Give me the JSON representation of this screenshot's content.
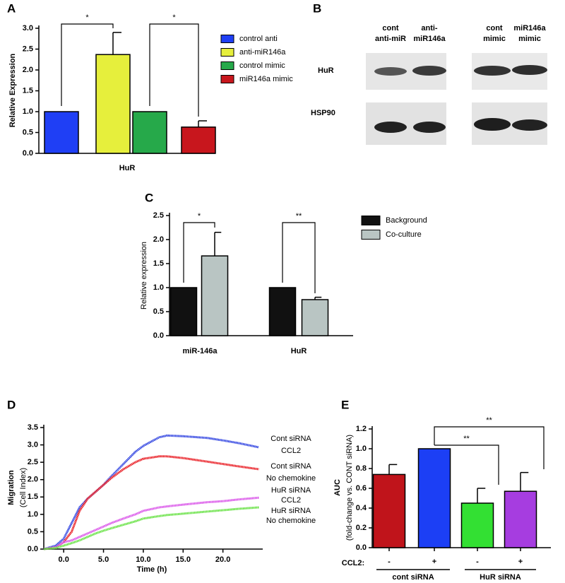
{
  "chart_data": [
    {
      "type": "bar",
      "panel_label": "A",
      "ylabel": "Relative Expression",
      "categories": [
        "HuR"
      ],
      "series": [
        {
          "name": "control anti",
          "color": "#1f3ff5",
          "values": [
            1.0
          ],
          "errors": [
            null
          ]
        },
        {
          "name": "anti-miR146a",
          "color": "#e6ef3c",
          "values": [
            2.37
          ],
          "errors": [
            0.53
          ]
        },
        {
          "name": "control mimic",
          "color": "#26a94a",
          "values": [
            1.0
          ],
          "errors": [
            null
          ]
        },
        {
          "name": "miR146a mimic",
          "color": "#c8161d",
          "values": [
            0.63
          ],
          "errors": [
            0.15
          ]
        }
      ],
      "ylim": [
        0,
        3
      ],
      "yticks": [
        {
          "value": 0,
          "label": "0.0"
        },
        {
          "value": 0.5,
          "label": "0.5"
        },
        {
          "value": 1,
          "label": "1.0"
        },
        {
          "value": 1.5,
          "label": "1.5"
        },
        {
          "value": 2,
          "label": "2.0"
        },
        {
          "value": 2.5,
          "label": "2.5"
        },
        {
          "value": 3,
          "label": "3.0"
        }
      ],
      "annotations": [
        "*",
        "*"
      ],
      "legend": "right"
    },
    {
      "type": "bar",
      "panel_label": "C",
      "ylabel": "Relative expression",
      "categories": [
        "miR-146a",
        "HuR"
      ],
      "series": [
        {
          "name": "Background",
          "color": "#111111",
          "values": [
            1.0,
            1.0
          ],
          "errors": [
            null,
            null
          ]
        },
        {
          "name": "Co-culture",
          "color": "#b9c5c3",
          "values": [
            1.66,
            0.75
          ],
          "errors": [
            0.49,
            0.05
          ]
        }
      ],
      "ylim": [
        0,
        2.5
      ],
      "yticks": [
        {
          "value": 0,
          "label": "0.0"
        },
        {
          "value": 0.5,
          "label": "0.5"
        },
        {
          "value": 1,
          "label": "1.0"
        },
        {
          "value": 1.5,
          "label": "1.5"
        },
        {
          "value": 2,
          "label": "2.0"
        },
        {
          "value": 2.5,
          "label": "2.5"
        }
      ],
      "annotations": [
        "*",
        "**"
      ],
      "legend": "right"
    },
    {
      "type": "line",
      "panel_label": "D",
      "ylabel": "Migration",
      "ylabel_sub": "(Cell Index)",
      "xlabel": "Time (h)",
      "x": [
        -2.5,
        -1,
        0,
        1,
        2,
        3,
        4,
        5,
        6,
        7.5,
        9,
        10,
        12,
        13,
        15,
        18,
        20,
        22,
        24.5
      ],
      "series": [
        {
          "name": [
            "Cont siRNA",
            "CCL2"
          ],
          "color": "#2b3fe0",
          "values": [
            0,
            0.1,
            0.3,
            0.75,
            1.2,
            1.45,
            1.65,
            1.85,
            2.1,
            2.45,
            2.8,
            2.97,
            3.22,
            3.27,
            3.25,
            3.2,
            3.13,
            3.05,
            2.93
          ]
        },
        {
          "name": [
            "Cont siRNA",
            "No chemokine"
          ],
          "color": "#e8141b",
          "values": [
            0,
            0.05,
            0.2,
            0.5,
            1.1,
            1.45,
            1.65,
            1.85,
            2.05,
            2.3,
            2.5,
            2.6,
            2.67,
            2.67,
            2.62,
            2.52,
            2.45,
            2.38,
            2.3
          ]
        },
        {
          "name": [
            "HuR siRNA",
            "CCL2"
          ],
          "color": "#d84de8",
          "values": [
            0,
            0.05,
            0.2,
            0.25,
            0.35,
            0.45,
            0.55,
            0.65,
            0.75,
            0.88,
            1.0,
            1.1,
            1.2,
            1.23,
            1.28,
            1.35,
            1.38,
            1.43,
            1.48
          ]
        },
        {
          "name": [
            "HuR siRNA",
            "No chemokine"
          ],
          "color": "#5fe03a",
          "values": [
            0,
            0.03,
            0.1,
            0.17,
            0.25,
            0.35,
            0.45,
            0.53,
            0.6,
            0.7,
            0.8,
            0.88,
            0.95,
            0.98,
            1.02,
            1.08,
            1.12,
            1.16,
            1.2
          ]
        }
      ],
      "xlim": [
        -2.5,
        25
      ],
      "xticks": [
        {
          "value": 0,
          "label": "0.0"
        },
        {
          "value": 5,
          "label": "5.0"
        },
        {
          "value": 10,
          "label": "10.0"
        },
        {
          "value": 15,
          "label": "15.0"
        },
        {
          "value": 20,
          "label": "20.0"
        }
      ],
      "ylim": [
        0,
        3.5
      ],
      "yticks": [
        {
          "value": 0,
          "label": "0.0"
        },
        {
          "value": 0.5,
          "label": "0.5"
        },
        {
          "value": 1,
          "label": "1.0"
        },
        {
          "value": 1.5,
          "label": "1.5"
        },
        {
          "value": 2,
          "label": "2.0"
        },
        {
          "value": 2.5,
          "label": "2.5"
        },
        {
          "value": 3,
          "label": "3.0"
        },
        {
          "value": 3.5,
          "label": "3.5"
        }
      ]
    },
    {
      "type": "bar",
      "panel_label": "E",
      "ylabel": "AUC",
      "ylabel_sub": "(fold-change vs. CONT siRNA)",
      "row_label": "CCL2:",
      "categories": [
        "-",
        "+",
        "-",
        "+"
      ],
      "groups": [
        "cont siRNA",
        "HuR siRNA"
      ],
      "values": [
        0.74,
        1.0,
        0.45,
        0.57
      ],
      "errors": [
        0.1,
        null,
        0.15,
        0.19
      ],
      "colors": [
        "#c0141b",
        "#1c3ff5",
        "#33e033",
        "#a63de0"
      ],
      "ylim": [
        0,
        1.2
      ],
      "yticks": [
        {
          "value": 0,
          "label": "0.0"
        },
        {
          "value": 0.2,
          "label": "0.2"
        },
        {
          "value": 0.4,
          "label": "0.4"
        },
        {
          "value": 0.6,
          "label": "0.6"
        },
        {
          "value": 0.8,
          "label": "0.8"
        },
        {
          "value": 1,
          "label": "1.0"
        },
        {
          "value": 1.2,
          "label": "1.2"
        }
      ],
      "annotations": [
        "**",
        "**"
      ]
    }
  ],
  "blot": {
    "panel_label": "B",
    "lanes": [
      [
        "cont",
        "anti-miR"
      ],
      [
        "anti-",
        "miR146a"
      ],
      [
        "cont",
        "mimic"
      ],
      [
        "miR146a",
        "mimic"
      ]
    ],
    "rows": [
      "HuR",
      "HSP90"
    ]
  }
}
